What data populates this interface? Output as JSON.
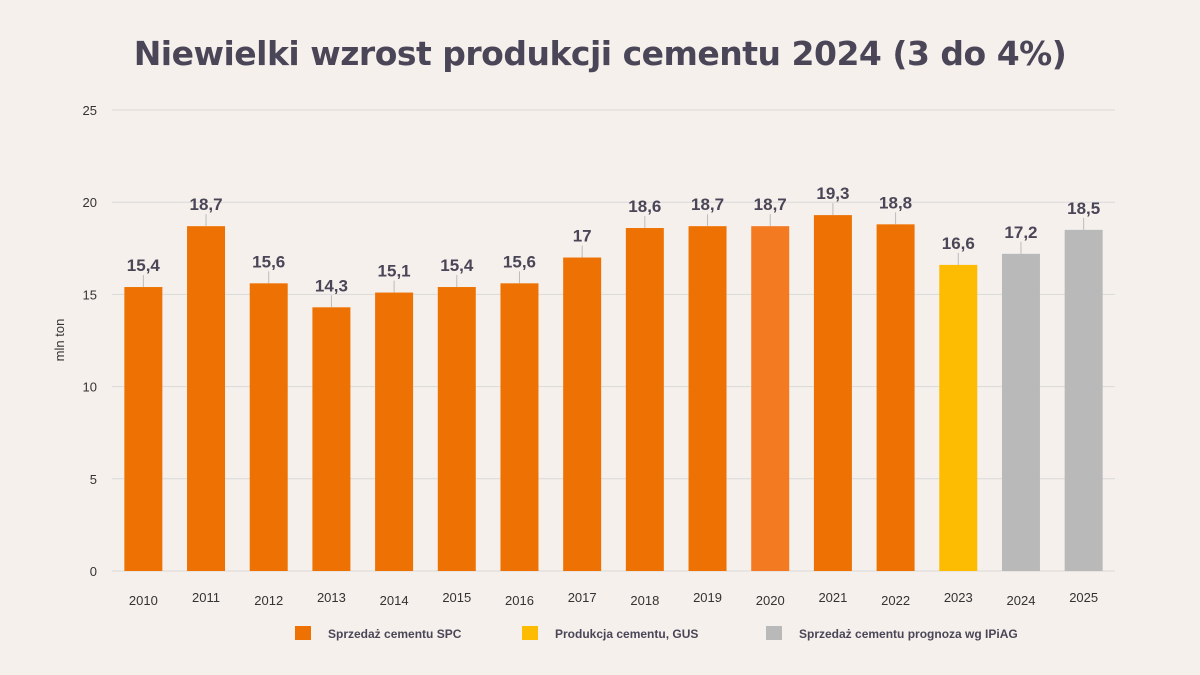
{
  "title": "Niewielki wzrost produkcji cementu 2024 (3 do 4%)",
  "colors": {
    "background": "#f5f0ec",
    "spc": "#ee7203",
    "spc_highlight": "#f47a22",
    "gus": "#fdbc02",
    "ipiag": "#b9b9b9",
    "grid": "#d9d9d9",
    "title": "#4a4657"
  },
  "chart_data": {
    "type": "bar",
    "title": "Niewielki wzrost produkcji cementu 2024 (3 do 4%)",
    "xlabel": "",
    "ylabel": "mln ton",
    "ylim": [
      0,
      25
    ],
    "yticks": [
      0,
      5,
      10,
      15,
      20,
      25
    ],
    "grid": true,
    "legend_position": "bottom",
    "categories": [
      "2010",
      "2011",
      "2012",
      "2013",
      "2014",
      "2015",
      "2016",
      "2017",
      "2018",
      "2019",
      "2020",
      "2021",
      "2022",
      "2023",
      "2024",
      "2025"
    ],
    "values": [
      15.4,
      18.7,
      15.6,
      14.3,
      15.1,
      15.4,
      15.6,
      17,
      18.6,
      18.7,
      18.7,
      19.3,
      18.8,
      16.6,
      17.2,
      18.5
    ],
    "value_labels": [
      "15,4",
      "18,7",
      "15,6",
      "14,3",
      "15,1",
      "15,4",
      "15,6",
      "17",
      "18,6",
      "18,7",
      "18,7",
      "19,3",
      "18,8",
      "16,6",
      "17,2",
      "18,5"
    ],
    "bar_series": [
      "spc",
      "spc",
      "spc",
      "spc",
      "spc",
      "spc",
      "spc",
      "spc",
      "spc",
      "spc",
      "spc",
      "spc",
      "spc",
      "gus",
      "ipiag",
      "ipiag"
    ],
    "series": [
      {
        "key": "spc",
        "name": "Sprzedaż cementu SPC",
        "color": "#ee7203"
      },
      {
        "key": "gus",
        "name": "Produkcja cementu, GUS",
        "color": "#fdbc02"
      },
      {
        "key": "ipiag",
        "name": "Sprzedaż cementu prognoza wg IPiAG",
        "color": "#b9b9b9"
      }
    ]
  }
}
